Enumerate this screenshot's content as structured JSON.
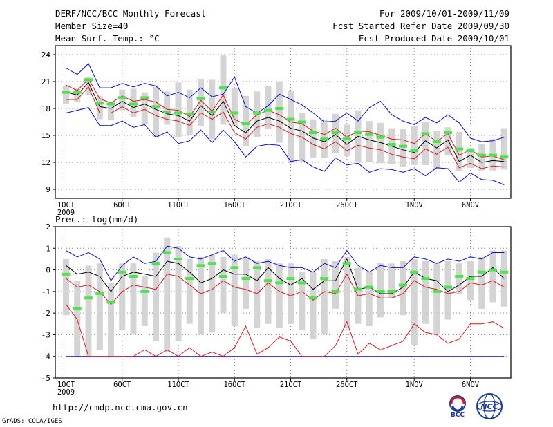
{
  "header": {
    "title": "DERF/NCC/BCC Monthly Forecast",
    "member_size": "Member Size=40",
    "variable": "Mean Surf. Temp.: °C",
    "period": "For 2009/10/01-2009/11/09",
    "started": "Fcst Started Refer Date 2009/09/30",
    "produced": "Fcst Produced Date 2009/10/01"
  },
  "footer": {
    "url": "http://cmdp.ncc.cma.gov.cn",
    "credit": "GrADS: COLA/IGES",
    "logo_bcc": "BCC",
    "logo_ncc": "NCC"
  },
  "colors": {
    "box": "#d4d4d4",
    "mean": "#000000",
    "spread": "#e0141e",
    "extreme": "#0a0ad2",
    "marker": "#4ce34c",
    "grid": "#888888"
  },
  "chart_data": [
    {
      "type": "line",
      "title": "Mean Surf. Temp.: °C",
      "x_labels": [
        "1OCT",
        "6OCT",
        "11OCT",
        "16OCT",
        "21OCT",
        "26OCT",
        "1NOV",
        "6NOV"
      ],
      "x_label_days": [
        1,
        6,
        11,
        16,
        21,
        26,
        32,
        37
      ],
      "year_label": "2009",
      "ylim": [
        8,
        25
      ],
      "yticks": [
        9,
        12,
        15,
        18,
        21,
        24
      ],
      "days": 40,
      "series": [
        {
          "name": "max",
          "values": [
            22.5,
            21.8,
            23.0,
            20.3,
            20.3,
            20.8,
            20.4,
            20.8,
            20.5,
            19.4,
            19.8,
            19.2,
            20.3,
            19.3,
            19.6,
            21.5,
            18.2,
            17.5,
            18.3,
            19.6,
            19.0,
            18.4,
            17.5,
            16.5,
            16.6,
            17.5,
            16.6,
            18.1,
            18.8,
            17.3,
            16.6,
            16.2,
            17.0,
            16.4,
            17.3,
            16.4,
            14.7,
            14.3,
            14.4,
            14.8
          ]
        },
        {
          "name": "upper",
          "values": [
            20.6,
            20.0,
            21.3,
            19.1,
            18.6,
            19.4,
            18.8,
            19.0,
            18.7,
            17.9,
            17.8,
            17.1,
            18.9,
            17.7,
            19.5,
            16.8,
            16.2,
            17.3,
            17.8,
            17.3,
            16.5,
            16.3,
            15.5,
            15.1,
            15.8,
            14.8,
            15.5,
            15.4,
            15.0,
            14.6,
            14.5,
            14.1,
            15.2,
            14.3,
            15.2,
            12.8,
            13.4,
            12.6,
            12.7,
            12.3
          ]
        },
        {
          "name": "mean",
          "values": [
            19.8,
            19.5,
            20.9,
            18.2,
            18.0,
            18.8,
            18.1,
            18.5,
            17.9,
            17.4,
            17.2,
            16.6,
            18.3,
            17.2,
            18.8,
            16.1,
            15.3,
            16.6,
            17.0,
            16.6,
            15.8,
            15.5,
            14.7,
            14.3,
            15.1,
            14.0,
            14.9,
            14.5,
            14.2,
            13.8,
            13.4,
            13.1,
            14.4,
            13.6,
            14.5,
            12.1,
            12.8,
            12.0,
            12.2,
            12.1
          ]
        },
        {
          "name": "lower",
          "values": [
            19.0,
            19.0,
            20.4,
            17.5,
            17.5,
            18.2,
            17.5,
            17.9,
            17.2,
            16.8,
            16.6,
            16.1,
            17.5,
            16.8,
            17.6,
            15.3,
            14.6,
            15.9,
            16.3,
            15.9,
            15.2,
            14.8,
            14.0,
            13.5,
            14.3,
            13.3,
            13.9,
            13.6,
            13.4,
            12.9,
            12.6,
            12.4,
            13.5,
            12.9,
            13.7,
            11.4,
            11.9,
            11.3,
            11.6,
            11.5
          ]
        },
        {
          "name": "min",
          "values": [
            17.5,
            17.8,
            18.1,
            16.1,
            16.1,
            16.6,
            15.9,
            16.2,
            14.8,
            15.4,
            14.1,
            14.4,
            15.6,
            14.2,
            15.6,
            14.3,
            12.6,
            13.8,
            14.0,
            13.9,
            12.1,
            12.3,
            11.5,
            11.0,
            12.5,
            11.7,
            11.9,
            10.9,
            11.3,
            11.2,
            10.9,
            11.3,
            10.5,
            11.4,
            11.3,
            9.8,
            10.8,
            10.1,
            10.0,
            9.5
          ]
        },
        {
          "name": "box_top",
          "values": [
            20.5,
            20.2,
            21.5,
            19.4,
            18.6,
            20.1,
            20.2,
            19.8,
            20.4,
            19.9,
            20.9,
            20.1,
            21.3,
            21.2,
            23.9,
            20.3,
            19.4,
            19.9,
            20.5,
            21.0,
            20.0,
            17.5,
            16.8,
            16.8,
            17.4,
            16.2,
            17.8,
            16.6,
            16.4,
            15.8,
            15.7,
            16.0,
            16.5,
            15.5,
            15.9,
            15.4,
            13.6,
            14.0,
            14.6,
            15.8
          ]
        },
        {
          "name": "box_bottom",
          "values": [
            18.5,
            18.7,
            19.5,
            16.8,
            16.7,
            17.8,
            17.0,
            16.2,
            14.8,
            16.2,
            14.8,
            15.0,
            16.0,
            14.6,
            16.2,
            16.0,
            13.8,
            14.8,
            15.7,
            14.2,
            11.9,
            12.1,
            12.5,
            12.5,
            13.0,
            12.7,
            12.0,
            12.0,
            11.9,
            11.8,
            11.5,
            11.7,
            11.7,
            11.3,
            12.8,
            11.0,
            11.4,
            11.1,
            11.1,
            11.2
          ]
        },
        {
          "name": "obs_marker",
          "values": [
            19.8,
            19.8,
            21.2,
            18.6,
            18.5,
            19.2,
            18.5,
            19.2,
            18.2,
            17.6,
            17.5,
            17.4,
            19.1,
            17.6,
            20.3,
            17.5,
            16.3,
            17.5,
            17.8,
            18.0,
            16.8,
            16.5,
            15.3,
            14.6,
            15.3,
            14.6,
            15.3,
            15.1,
            14.8,
            14.0,
            13.8,
            13.3,
            15.2,
            14.3,
            15.3,
            13.5,
            13.3,
            12.8,
            12.8,
            12.6
          ]
        }
      ]
    },
    {
      "type": "line",
      "title": "Prec.: log(mm/d)",
      "x_labels": [
        "1OCT",
        "6OCT",
        "11OCT",
        "16OCT",
        "21OCT",
        "26OCT",
        "1NOV",
        "6NOV"
      ],
      "x_label_days": [
        1,
        6,
        11,
        16,
        21,
        26,
        32,
        37
      ],
      "year_label": "2009",
      "ylim": [
        -5,
        2
      ],
      "yticks": [
        -5,
        -4,
        -3,
        -2,
        -1,
        0,
        1,
        2
      ],
      "days": 40,
      "series": [
        {
          "name": "max",
          "values": [
            0.9,
            0.6,
            0.8,
            0.5,
            -0.5,
            0.2,
            0.6,
            0.3,
            0.4,
            1.1,
            1.0,
            0.6,
            0.5,
            0.7,
            0.9,
            0.4,
            0.6,
            0.3,
            0.4,
            0.2,
            0.1,
            0.1,
            -0.1,
            0.3,
            0.1,
            0.9,
            0.2,
            -0.1,
            0.2,
            0.1,
            0.1,
            0.6,
            0.5,
            0.3,
            0.5,
            0.4,
            0.6,
            0.5,
            0.8,
            0.8
          ]
        },
        {
          "name": "mean",
          "values": [
            0.2,
            -0.2,
            -0.1,
            -0.3,
            -1.0,
            -0.3,
            -0.1,
            -0.2,
            -0.3,
            0.4,
            0.3,
            -0.1,
            -0.6,
            -0.4,
            0.0,
            -0.2,
            -0.2,
            -0.5,
            0.1,
            -0.4,
            -0.7,
            -0.4,
            -0.9,
            -0.5,
            -0.5,
            0.5,
            -0.9,
            -0.8,
            -1.1,
            -1.1,
            -0.8,
            -0.1,
            -0.4,
            -0.5,
            -1.0,
            -0.7,
            -0.3,
            -0.3,
            0.1,
            -0.4
          ]
        },
        {
          "name": "upper",
          "values": [
            -0.4,
            -0.8,
            -0.7,
            -1.0,
            -1.6,
            -1.0,
            -0.7,
            -0.8,
            -0.9,
            -0.2,
            -0.3,
            -0.7,
            -1.1,
            -0.9,
            -0.5,
            -0.8,
            -0.9,
            -1.1,
            -0.6,
            -1.0,
            -1.2,
            -1.0,
            -1.4,
            -1.0,
            -1.1,
            -0.2,
            -1.2,
            -1.1,
            -1.3,
            -1.3,
            -1.1,
            -0.5,
            -0.8,
            -0.9,
            -1.1,
            -1.0,
            -0.6,
            -0.7,
            -0.5,
            -0.8
          ]
        },
        {
          "name": "lower",
          "values": [
            -1.6,
            -2.3,
            -4.0,
            -4.0,
            -4.0,
            -4.0,
            -4.0,
            -3.7,
            -4.0,
            -3.7,
            -4.0,
            -3.6,
            -4.0,
            -3.8,
            -4.0,
            -3.6,
            -2.6,
            -3.9,
            -3.6,
            -3.1,
            -3.3,
            -4.0,
            -4.0,
            -4.0,
            -3.5,
            -2.4,
            -3.9,
            -3.4,
            -3.7,
            -3.5,
            -3.3,
            -2.5,
            -2.9,
            -3.0,
            -3.4,
            -3.2,
            -2.5,
            -2.5,
            -2.4,
            -2.7
          ]
        },
        {
          "name": "min",
          "values": [
            -4.0,
            -4.0,
            -4.0,
            -4.0,
            -4.0,
            -4.0,
            -4.0,
            -4.0,
            -4.0,
            -4.0,
            -4.0,
            -4.0,
            -4.0,
            -4.0,
            -4.0,
            -4.0,
            -4.0,
            -4.0,
            -4.0,
            -4.0,
            -4.0,
            -4.0,
            -4.0,
            -4.0,
            -4.0,
            -4.0,
            -4.0,
            -4.0,
            -4.0,
            -4.0,
            -4.0,
            -4.0,
            -4.0,
            -4.0,
            -4.0,
            -4.0,
            -4.0,
            -4.0,
            -4.0,
            -4.0
          ]
        },
        {
          "name": "box_top",
          "values": [
            0.5,
            -0.5,
            0.2,
            0.3,
            -0.6,
            0.3,
            0.3,
            -0.3,
            0.8,
            1.5,
            1.1,
            0.5,
            0.6,
            0.7,
            0.6,
            0.7,
            0.6,
            0.4,
            0.5,
            0.3,
            0.3,
            -0.1,
            -0.1,
            0.5,
            0.4,
            0.6,
            0.1,
            -0.1,
            0.3,
            0.3,
            0.4,
            0.5,
            0.4,
            0.3,
            0.4,
            0.3,
            0.4,
            0.6,
            0.9,
            0.9
          ]
        },
        {
          "name": "box_bottom",
          "values": [
            -2.1,
            -4.0,
            -4.0,
            -3.7,
            -4.0,
            -2.8,
            -3.0,
            -2.6,
            -3.3,
            -3.8,
            -3.3,
            -2.5,
            -3.0,
            -2.9,
            -2.0,
            -2.6,
            -1.8,
            -2.7,
            -2.5,
            -2.7,
            -2.5,
            -2.8,
            -3.2,
            -3.0,
            -1.8,
            -2.7,
            -2.5,
            -2.6,
            -2.2,
            -1.3,
            -2.1,
            -3.5,
            -2.5,
            -3.0,
            -2.3,
            -1.1,
            -1.4,
            -1.8,
            -1.5,
            -1.7
          ]
        },
        {
          "name": "obs_marker",
          "values": [
            -0.2,
            -1.8,
            -1.3,
            -1.1,
            -1.5,
            -0.1,
            -0.3,
            -1.0,
            0.3,
            0.8,
            0.5,
            -0.4,
            0.2,
            0.3,
            -0.3,
            0.1,
            -0.4,
            0.1,
            -0.5,
            -0.6,
            -0.4,
            -0.6,
            -1.3,
            -0.4,
            -1.0,
            0.3,
            -0.9,
            -0.8,
            -1.0,
            -1.0,
            -0.7,
            -0.1,
            -0.4,
            -1.0,
            -0.8,
            -0.3,
            -0.4,
            -0.1,
            0.0,
            -0.1
          ]
        }
      ]
    }
  ]
}
